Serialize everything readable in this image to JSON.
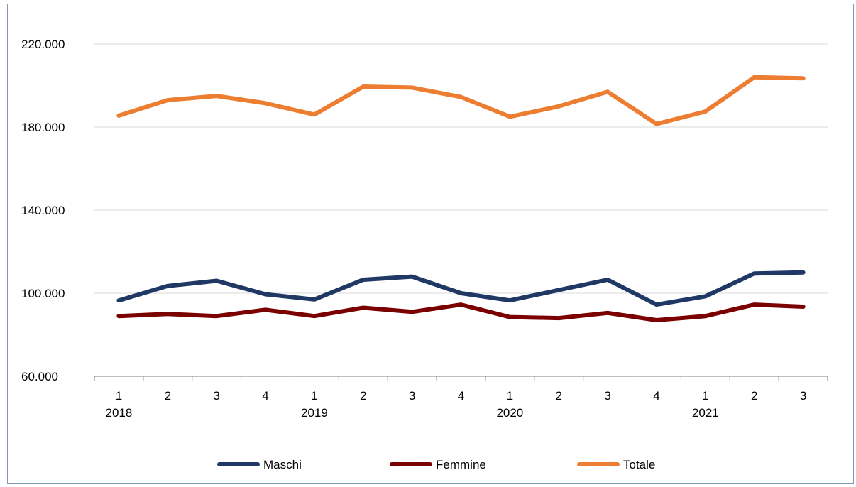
{
  "chart_data": {
    "type": "line",
    "title": "",
    "xlabel": "",
    "ylabel": "",
    "ylim": [
      60000,
      220000
    ],
    "y_ticks": [
      "220.000",
      "180.000",
      "140.000",
      "100.000",
      "60.000"
    ],
    "y_tick_values": [
      220000,
      180000,
      140000,
      100000,
      60000
    ],
    "categories": [
      "1",
      "2",
      "3",
      "4",
      "1",
      "2",
      "3",
      "4",
      "1",
      "2",
      "3",
      "4",
      "1",
      "2",
      "3"
    ],
    "years": [
      {
        "label": "2018",
        "index": 0
      },
      {
        "label": "2019",
        "index": 4
      },
      {
        "label": "2020",
        "index": 8
      },
      {
        "label": "2021",
        "index": 12
      }
    ],
    "grid": true,
    "legend_position": "bottom",
    "series": [
      {
        "name": "Maschi",
        "color": "#1f3864",
        "values": [
          96500,
          103500,
          106000,
          99500,
          97000,
          106500,
          108000,
          100000,
          96500,
          101500,
          106500,
          94500,
          98500,
          109500,
          110000
        ]
      },
      {
        "name": "Femmine",
        "color": "#7b0000",
        "values": [
          89000,
          90000,
          89000,
          92000,
          89000,
          93000,
          91000,
          94500,
          88500,
          88000,
          90500,
          87000,
          89000,
          94500,
          93500
        ]
      },
      {
        "name": "Totale",
        "color": "#ed7d31",
        "values": [
          185500,
          193000,
          195000,
          191500,
          186000,
          199500,
          199000,
          194500,
          185000,
          190000,
          197000,
          181500,
          187500,
          204000,
          203500
        ]
      }
    ]
  }
}
